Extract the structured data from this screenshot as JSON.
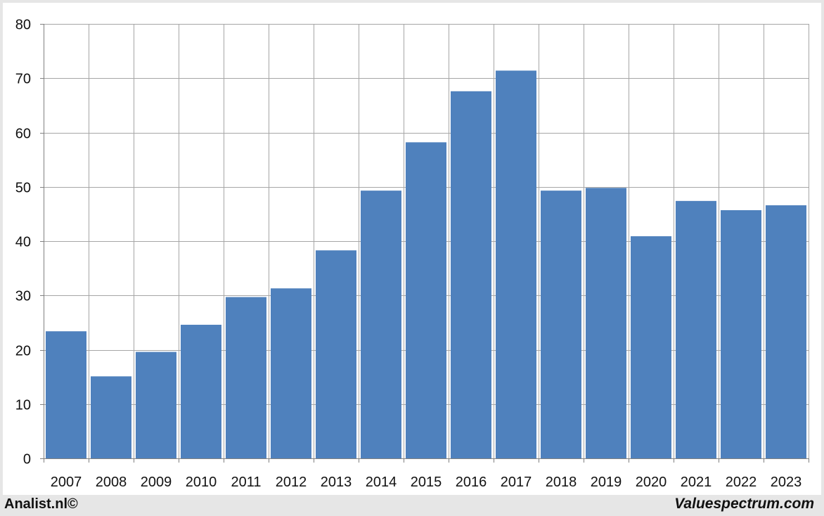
{
  "footer": {
    "left": "Analist.nl©",
    "right": "Valuespectrum.com"
  },
  "colors": {
    "bar": "#4f81bd",
    "grid": "#a6a6a6",
    "axis": "#808080"
  },
  "chart_data": {
    "type": "bar",
    "categories": [
      "2007",
      "2008",
      "2009",
      "2010",
      "2011",
      "2012",
      "2013",
      "2014",
      "2015",
      "2016",
      "2017",
      "2018",
      "2019",
      "2020",
      "2021",
      "2022",
      "2023"
    ],
    "values": [
      23.4,
      15.1,
      19.6,
      24.6,
      29.7,
      31.3,
      38.3,
      49.3,
      58.2,
      67.6,
      71.4,
      49.3,
      49.8,
      40.9,
      47.4,
      45.7,
      46.6
    ],
    "title": "",
    "xlabel": "",
    "ylabel": "",
    "ylim": [
      0,
      80
    ],
    "yticks": [
      "0",
      "10",
      "20",
      "30",
      "40",
      "50",
      "60",
      "70",
      "80"
    ],
    "grid": true,
    "legend": "none"
  }
}
